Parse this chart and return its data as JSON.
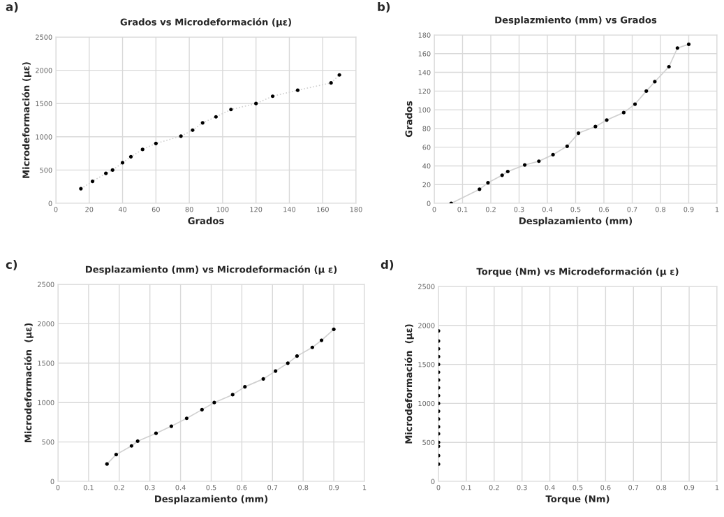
{
  "chart_data": [
    {
      "type": "scatter",
      "title": "Grados vs Microdeformación (με)",
      "xlabel": "Grados",
      "ylabel": "Microdeformación (με)",
      "annotations": [
        "a)"
      ],
      "xlim": [
        0,
        180
      ],
      "xticks": [
        0,
        20,
        40,
        60,
        80,
        100,
        120,
        140,
        160,
        180
      ],
      "ylim": [
        0,
        2500
      ],
      "yticks": [
        0,
        500,
        1000,
        1500,
        2000,
        2500
      ],
      "grid": true,
      "series": [
        {
          "type": "line",
          "marker": "none",
          "color": "#d0d0d0",
          "line_style": "dotted",
          "x": [
            15,
            22,
            30,
            34,
            40,
            45,
            52,
            60,
            75,
            82,
            88,
            96,
            105,
            120,
            130,
            145,
            165,
            170
          ],
          "values": [
            220,
            330,
            450,
            500,
            610,
            700,
            810,
            900,
            1010,
            1100,
            1210,
            1300,
            1410,
            1500,
            1610,
            1700,
            1810,
            1930
          ]
        },
        {
          "marker": "circle",
          "color": "#000000",
          "x": [
            15,
            22,
            30,
            34,
            40,
            45,
            52,
            60,
            75,
            82,
            88,
            96,
            105,
            120,
            130,
            145,
            165,
            170
          ],
          "values": [
            220,
            330,
            450,
            500,
            610,
            700,
            810,
            900,
            1010,
            1100,
            1210,
            1300,
            1410,
            1500,
            1610,
            1700,
            1810,
            1930
          ]
        }
      ]
    },
    {
      "type": "scatter",
      "title": "Desplazmiento (mm) vs Grados",
      "xlabel": "Desplazamiento (mm)",
      "ylabel": "Grados",
      "annotations": [
        "b)"
      ],
      "xlim": [
        0,
        1
      ],
      "xticks": [
        0,
        0.1,
        0.2,
        0.3,
        0.4,
        0.5,
        0.6,
        0.7,
        0.8,
        0.9,
        1
      ],
      "ylim": [
        0,
        180
      ],
      "yticks": [
        0,
        20,
        40,
        60,
        80,
        100,
        120,
        140,
        160,
        180
      ],
      "grid": true,
      "series": [
        {
          "type": "line",
          "marker": "none",
          "color": "#d0d0d0",
          "line_style": "solid",
          "x": [
            0.06,
            0.16,
            0.19,
            0.24,
            0.26,
            0.32,
            0.37,
            0.42,
            0.47,
            0.51,
            0.57,
            0.61,
            0.67,
            0.71,
            0.75,
            0.78,
            0.83,
            0.86,
            0.9
          ],
          "values": [
            0,
            15,
            22,
            30,
            34,
            41,
            45,
            52,
            61,
            75,
            82,
            89,
            97,
            106,
            120,
            130,
            146,
            166,
            170
          ]
        },
        {
          "marker": "circle",
          "color": "#000000",
          "x": [
            0.06,
            0.16,
            0.19,
            0.24,
            0.26,
            0.32,
            0.37,
            0.42,
            0.47,
            0.51,
            0.57,
            0.61,
            0.67,
            0.71,
            0.75,
            0.78,
            0.83,
            0.86,
            0.9
          ],
          "values": [
            0,
            15,
            22,
            30,
            34,
            41,
            45,
            52,
            61,
            75,
            82,
            89,
            97,
            106,
            120,
            130,
            146,
            166,
            170
          ]
        }
      ]
    },
    {
      "type": "scatter",
      "title": "Desplazamiento (mm) vs Microdeformación (μ ε)",
      "xlabel": "Desplazamiento (mm)",
      "ylabel": "Microdeformación  (με)",
      "annotations": [
        "c)"
      ],
      "xlim": [
        0,
        1
      ],
      "xticks": [
        0,
        0.1,
        0.2,
        0.3,
        0.4,
        0.5,
        0.6,
        0.7,
        0.8,
        0.9,
        1
      ],
      "ylim": [
        0,
        2500
      ],
      "yticks": [
        0,
        500,
        1000,
        1500,
        2000,
        2500
      ],
      "grid": true,
      "series": [
        {
          "type": "line",
          "marker": "none",
          "color": "#d0d0d0",
          "line_style": "solid",
          "x": [
            0.16,
            0.19,
            0.24,
            0.26,
            0.32,
            0.37,
            0.42,
            0.47,
            0.51,
            0.57,
            0.61,
            0.67,
            0.71,
            0.75,
            0.78,
            0.83,
            0.86,
            0.9
          ],
          "values": [
            220,
            340,
            450,
            510,
            610,
            700,
            800,
            910,
            1000,
            1100,
            1200,
            1300,
            1400,
            1500,
            1590,
            1700,
            1790,
            1930
          ]
        },
        {
          "marker": "circle",
          "color": "#000000",
          "x": [
            0.16,
            0.19,
            0.24,
            0.26,
            0.32,
            0.37,
            0.42,
            0.47,
            0.51,
            0.57,
            0.61,
            0.67,
            0.71,
            0.75,
            0.78,
            0.83,
            0.86,
            0.9
          ],
          "values": [
            220,
            340,
            450,
            510,
            610,
            700,
            800,
            910,
            1000,
            1100,
            1200,
            1300,
            1400,
            1500,
            1590,
            1700,
            1790,
            1930
          ]
        }
      ]
    },
    {
      "type": "scatter",
      "title": "Torque (Nm) vs Microdeformación (μ ε)",
      "xlabel": "Torque (Nm)",
      "ylabel": "Microdeformación  (με)",
      "annotations": [
        "d)"
      ],
      "xlim": [
        0,
        1
      ],
      "xticks": [
        0,
        0.1,
        0.2,
        0.3,
        0.4,
        0.5,
        0.6,
        0.7,
        0.8,
        0.9,
        1
      ],
      "ylim": [
        0,
        2500
      ],
      "yticks": [
        0,
        500,
        1000,
        1500,
        2000,
        2500
      ],
      "grid": true,
      "series": [
        {
          "marker": "circle",
          "color": "#000000",
          "x": [
            0,
            0,
            0,
            0,
            0,
            0,
            0,
            0,
            0,
            0,
            0,
            0,
            0,
            0,
            0,
            0,
            0,
            0
          ],
          "values": [
            220,
            330,
            450,
            500,
            610,
            700,
            800,
            900,
            1000,
            1100,
            1200,
            1300,
            1400,
            1500,
            1600,
            1700,
            1800,
            1930
          ]
        }
      ]
    }
  ]
}
